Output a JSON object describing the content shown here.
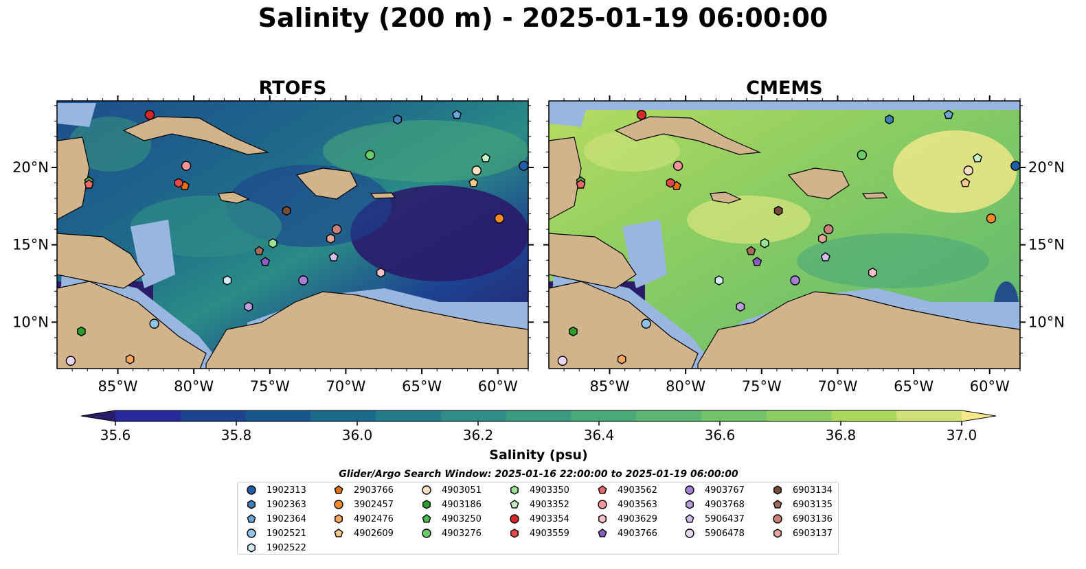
{
  "title": "Salinity (200 m) - 2025-01-19 06:00:00",
  "chart_data": {
    "type": "heatmap",
    "panels": [
      {
        "name": "RTOFS"
      },
      {
        "name": "CMEMS"
      }
    ],
    "xlim": [
      -89,
      -58
    ],
    "ylim": [
      7,
      24.3
    ],
    "x_ticks": [
      -85,
      -80,
      -75,
      -70,
      -65,
      -60
    ],
    "x_tick_labels": [
      "85°W",
      "80°W",
      "75°W",
      "70°W",
      "65°W",
      "60°W"
    ],
    "y_ticks": [
      10,
      15,
      20
    ],
    "y_tick_labels": [
      "10°N",
      "15°N",
      "20°N"
    ],
    "colorbar": {
      "label": "Salinity (psu)",
      "range": [
        35.6,
        37.0
      ],
      "ticks": [
        35.6,
        35.8,
        36.0,
        36.2,
        36.4,
        36.6,
        36.8,
        37.0
      ],
      "tick_labels": [
        "35.6",
        "35.8",
        "36.0",
        "36.2",
        "36.4",
        "36.6",
        "36.8",
        "37.0"
      ],
      "extend": "both",
      "colors": [
        "#2a1b6b",
        "#28299a",
        "#1d4390",
        "#18578c",
        "#1a6a8c",
        "#247c8b",
        "#2f8c86",
        "#3a9b80",
        "#4aa97a",
        "#5cb673",
        "#72c26a",
        "#8ccd62",
        "#a9d85d",
        "#cfe27a",
        "#f5e98a"
      ]
    },
    "glider_argo_window": "Glider/Argo Search Window: 2025-01-16 22:00:00 to 2025-01-19 06:00:00",
    "series": [
      {
        "name": "1902313",
        "marker": "circle",
        "color": "#1f5fa8",
        "x": -58.3,
        "y": 20.1
      },
      {
        "name": "1902363",
        "marker": "hexagon",
        "color": "#3f7fb8",
        "x": -66.6,
        "y": 23.1
      },
      {
        "name": "1902364",
        "marker": "pentagon",
        "color": "#6aa6d8",
        "x": -62.7,
        "y": 23.4
      },
      {
        "name": "1902521",
        "marker": "circle",
        "color": "#8fc3ea",
        "x": -82.6,
        "y": 9.9
      },
      {
        "name": "1902522",
        "marker": "hexagon",
        "color": "#d2ecfb",
        "x": -77.8,
        "y": 12.7
      },
      {
        "name": "2903766",
        "marker": "pentagon",
        "color": "#e8700c",
        "x": -80.6,
        "y": 18.8
      },
      {
        "name": "3902457",
        "marker": "circle",
        "color": "#f58a2a",
        "x": -59.9,
        "y": 16.7
      },
      {
        "name": "4902476",
        "marker": "hexagon",
        "color": "#f9a65a",
        "x": -84.2,
        "y": 7.6
      },
      {
        "name": "4902609",
        "marker": "pentagon",
        "color": "#fdc88a",
        "x": -61.6,
        "y": 19.0
      },
      {
        "name": "4903051",
        "marker": "circle",
        "color": "#fde0c2",
        "x": -61.4,
        "y": 19.8
      },
      {
        "name": "4903186",
        "marker": "hexagon",
        "color": "#2aa02a",
        "x": -87.4,
        "y": 9.4
      },
      {
        "name": "4903250",
        "marker": "pentagon",
        "color": "#4dbb4d",
        "x": -86.9,
        "y": 19.1
      },
      {
        "name": "4903276",
        "marker": "circle",
        "color": "#6ccc6c",
        "x": -68.4,
        "y": 20.8
      },
      {
        "name": "4903350",
        "marker": "hexagon",
        "color": "#9ae59a",
        "x": -74.8,
        "y": 15.1
      },
      {
        "name": "4903352",
        "marker": "pentagon",
        "color": "#c8f5c8",
        "x": -60.8,
        "y": 20.6
      },
      {
        "name": "4903354",
        "marker": "circle",
        "color": "#d62728",
        "x": -82.9,
        "y": 23.4
      },
      {
        "name": "4903559",
        "marker": "hexagon",
        "color": "#e8474a",
        "x": -81.0,
        "y": 19.0
      },
      {
        "name": "4903562",
        "marker": "pentagon",
        "color": "#f0676a",
        "x": -86.9,
        "y": 18.9
      },
      {
        "name": "4903563",
        "marker": "circle",
        "color": "#f4939a",
        "x": -80.5,
        "y": 20.1
      },
      {
        "name": "4903629",
        "marker": "hexagon",
        "color": "#fbc1c6",
        "x": -67.7,
        "y": 13.2
      },
      {
        "name": "4903766",
        "marker": "pentagon",
        "color": "#8a5cc2",
        "x": -75.3,
        "y": 13.9
      },
      {
        "name": "4903767",
        "marker": "circle",
        "color": "#a87fd4",
        "x": -72.8,
        "y": 12.7
      },
      {
        "name": "4903768",
        "marker": "hexagon",
        "color": "#bc9ee0",
        "x": -76.4,
        "y": 11.0
      },
      {
        "name": "5906437",
        "marker": "pentagon",
        "color": "#d4bdf0",
        "x": -70.8,
        "y": 14.2
      },
      {
        "name": "5906478",
        "marker": "circle",
        "color": "#ead5f5",
        "x": -88.1,
        "y": 7.5
      },
      {
        "name": "6903134",
        "marker": "hexagon",
        "color": "#7a4a36",
        "x": -73.9,
        "y": 17.2
      },
      {
        "name": "6903135",
        "marker": "pentagon",
        "color": "#a46a5a",
        "x": -75.7,
        "y": 14.6
      },
      {
        "name": "6903136",
        "marker": "circle",
        "color": "#c8807a",
        "x": -70.6,
        "y": 16.0
      },
      {
        "name": "6903137",
        "marker": "hexagon",
        "color": "#e8a798",
        "x": -71.0,
        "y": 15.4
      }
    ]
  }
}
